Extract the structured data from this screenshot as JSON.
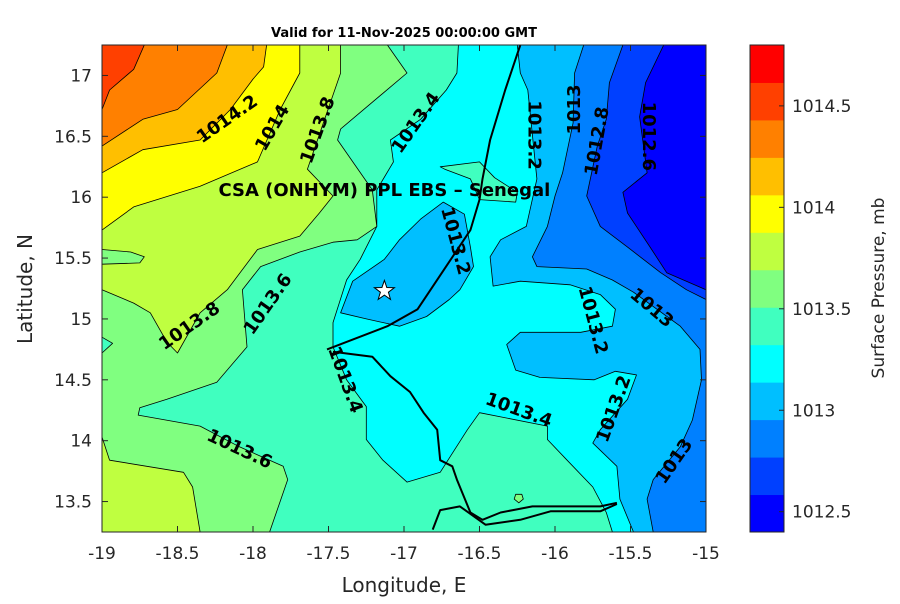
{
  "chart_data": {
    "type": "contour-map",
    "title": "Valid for 11-Nov-2025 00:00:00 GMT",
    "xlabel": "Longitude, E",
    "ylabel": "Latitude, N",
    "xlim": [
      -19,
      -15
    ],
    "ylim": [
      13.25,
      17.25
    ],
    "xticks": [
      -19,
      -18.5,
      -18,
      -17.5,
      -17,
      -16.5,
      -16,
      -15.5,
      -15
    ],
    "xtick_labels": [
      "-19",
      "-18.5",
      "-18",
      "-17.5",
      "-17",
      "-16.5",
      "-16",
      "-15.5",
      "-15"
    ],
    "yticks": [
      13.5,
      14,
      14.5,
      15,
      15.5,
      16,
      16.5,
      17
    ],
    "ytick_labels": [
      "13.5",
      "14",
      "14.5",
      "15",
      "15.5",
      "16",
      "16.5",
      "17"
    ],
    "colorbar": {
      "label": "Surface Pressure, mb",
      "range": [
        1012.4,
        1014.8
      ],
      "ticks": [
        1012.5,
        1013,
        1013.5,
        1014,
        1014.5
      ],
      "tick_labels": [
        "1012.5",
        "1013",
        "1013.5",
        "1014",
        "1014.5"
      ],
      "colors": [
        "#0000FF",
        "#0040FF",
        "#0080FF",
        "#00BFFF",
        "#00FFFF",
        "#40FFBF",
        "#80FF80",
        "#BFFF40",
        "#FFFF00",
        "#FFBF00",
        "#FF8000",
        "#FF4000",
        "#FF0000"
      ]
    },
    "base_color": "#0000FF",
    "filled_regions": [
      {
        "level": 1012.6,
        "color": "#0040FF",
        "points": [
          [
            -19,
            17.25
          ],
          [
            -15.28,
            17.25
          ],
          [
            -15.4,
            16.94
          ],
          [
            -15.44,
            16.66
          ],
          [
            -15.39,
            16.2
          ],
          [
            -15.55,
            16.04
          ],
          [
            -15.52,
            15.87
          ],
          [
            -15.37,
            15.59
          ],
          [
            -15.26,
            15.38
          ],
          [
            -15,
            15.24
          ],
          [
            -15,
            13.25
          ],
          [
            -19,
            13.25
          ]
        ]
      },
      {
        "level": 1012.8,
        "color": "#0080FF",
        "points": [
          [
            -19,
            17.25
          ],
          [
            -15.55,
            17.25
          ],
          [
            -15.64,
            16.94
          ],
          [
            -15.66,
            16.64
          ],
          [
            -15.72,
            16.42
          ],
          [
            -15.79,
            16.01
          ],
          [
            -15.7,
            15.76
          ],
          [
            -15.52,
            15.59
          ],
          [
            -15.3,
            15.38
          ],
          [
            -15.13,
            15.24
          ],
          [
            -15,
            15.16
          ],
          [
            -15,
            13.25
          ],
          [
            -19,
            13.25
          ]
        ]
      },
      {
        "level": 1013.0,
        "color": "#00BFFF",
        "points": [
          [
            -19,
            17.25
          ],
          [
            -15.81,
            17.25
          ],
          [
            -15.87,
            17.02
          ],
          [
            -15.88,
            16.61
          ],
          [
            -15.95,
            16.2
          ],
          [
            -16.0,
            16.01
          ],
          [
            -16.05,
            15.76
          ],
          [
            -16.15,
            15.51
          ],
          [
            -16.12,
            15.43
          ],
          [
            -15.79,
            15.41
          ],
          [
            -15.62,
            15.32
          ],
          [
            -15.48,
            15.22
          ],
          [
            -15.17,
            14.94
          ],
          [
            -15.04,
            14.75
          ],
          [
            -15.03,
            14.5
          ],
          [
            -15.09,
            14.17
          ],
          [
            -15.17,
            13.95
          ],
          [
            -15.35,
            13.68
          ],
          [
            -15.39,
            13.52
          ],
          [
            -15.35,
            13.25
          ],
          [
            -19,
            13.25
          ]
        ]
      },
      {
        "level": 1013.2,
        "color": "#00FFFF",
        "points": [
          [
            -19,
            17.25
          ],
          [
            -16.25,
            17.25
          ],
          [
            -16.23,
            17.02
          ],
          [
            -16.18,
            16.88
          ],
          [
            -16.12,
            16.15
          ],
          [
            -16.19,
            15.76
          ],
          [
            -16.36,
            15.65
          ],
          [
            -16.43,
            15.51
          ],
          [
            -16.41,
            15.27
          ],
          [
            -16.23,
            15.31
          ],
          [
            -15.9,
            15.28
          ],
          [
            -15.7,
            15.2
          ],
          [
            -15.6,
            15.08
          ],
          [
            -15.62,
            14.94
          ],
          [
            -15.83,
            14.89
          ],
          [
            -16.23,
            14.89
          ],
          [
            -16.32,
            14.79
          ],
          [
            -16.26,
            14.58
          ],
          [
            -16.1,
            14.52
          ],
          [
            -15.74,
            14.5
          ],
          [
            -15.6,
            14.57
          ],
          [
            -15.46,
            14.54
          ],
          [
            -15.52,
            14.34
          ],
          [
            -15.7,
            14.09
          ],
          [
            -15.75,
            13.98
          ],
          [
            -15.59,
            13.79
          ],
          [
            -15.57,
            13.52
          ],
          [
            -15.48,
            13.25
          ],
          [
            -19,
            13.25
          ]
        ]
      },
      {
        "level": 1013.0,
        "color": "#00BFFF",
        "points": [
          [
            -16.74,
            15.96
          ],
          [
            -16.6,
            15.86
          ],
          [
            -16.56,
            15.59
          ],
          [
            -16.54,
            15.43
          ],
          [
            -16.63,
            15.24
          ],
          [
            -16.7,
            15.16
          ],
          [
            -16.85,
            15.02
          ],
          [
            -17.03,
            14.94
          ],
          [
            -17.25,
            15.0
          ],
          [
            -17.42,
            15.05
          ],
          [
            -17.34,
            15.31
          ],
          [
            -17.13,
            15.49
          ],
          [
            -17.03,
            15.65
          ],
          [
            -16.89,
            15.82
          ]
        ]
      },
      {
        "level": 1013.4,
        "color": "#40FFBF",
        "points": [
          [
            -19,
            17.25
          ],
          [
            -16.64,
            17.25
          ],
          [
            -16.65,
            17.02
          ],
          [
            -16.72,
            16.88
          ],
          [
            -16.89,
            16.64
          ],
          [
            -17.09,
            16.47
          ],
          [
            -17.07,
            16.29
          ],
          [
            -17.18,
            16.06
          ],
          [
            -17.18,
            15.76
          ],
          [
            -17.29,
            15.49
          ],
          [
            -17.38,
            15.32
          ],
          [
            -17.47,
            14.97
          ],
          [
            -17.47,
            14.77
          ],
          [
            -17.38,
            14.5
          ],
          [
            -17.25,
            14.28
          ],
          [
            -17.25,
            14.01
          ],
          [
            -17.14,
            13.84
          ],
          [
            -16.98,
            13.66
          ],
          [
            -16.76,
            13.74
          ],
          [
            -16.58,
            14.09
          ],
          [
            -16.5,
            14.23
          ],
          [
            -16.05,
            14.12
          ],
          [
            -16.05,
            14.01
          ],
          [
            -15.92,
            13.84
          ],
          [
            -15.75,
            13.62
          ],
          [
            -15.66,
            13.41
          ],
          [
            -15.62,
            13.25
          ],
          [
            -19,
            13.25
          ]
        ]
      },
      {
        "level": 1013.4,
        "color": "#40FFBF",
        "points": [
          [
            -16.76,
            16.25
          ],
          [
            -16.5,
            16.29
          ],
          [
            -16.4,
            16.16
          ],
          [
            -16.25,
            16.04
          ],
          [
            -16.26,
            15.96
          ],
          [
            -16.5,
            15.98
          ],
          [
            -16.56,
            16.15
          ],
          [
            -16.73,
            16.23
          ]
        ]
      },
      {
        "level": 1013.6,
        "color": "#80FF80",
        "points": [
          [
            -19,
            17.25
          ],
          [
            -17.11,
            17.25
          ],
          [
            -16.98,
            17.02
          ],
          [
            -17.42,
            16.56
          ],
          [
            -17.44,
            16.47
          ],
          [
            -17.21,
            16.06
          ],
          [
            -17.18,
            15.76
          ],
          [
            -17.31,
            15.65
          ],
          [
            -17.47,
            15.63
          ],
          [
            -17.69,
            15.55
          ],
          [
            -17.95,
            15.43
          ],
          [
            -18.07,
            15.24
          ],
          [
            -18.04,
            14.77
          ],
          [
            -18.24,
            14.48
          ],
          [
            -18.57,
            14.34
          ],
          [
            -18.75,
            14.27
          ],
          [
            -18.76,
            14.21
          ],
          [
            -18.35,
            14.12
          ],
          [
            -18.09,
            13.95
          ],
          [
            -17.8,
            13.79
          ],
          [
            -17.77,
            13.68
          ],
          [
            -17.89,
            13.25
          ],
          [
            -19,
            13.25
          ]
        ]
      },
      {
        "level": 1013.4,
        "color": "#40FFBF",
        "points": [
          [
            -19,
            14.85
          ],
          [
            -18.93,
            14.8
          ],
          [
            -19,
            14.72
          ]
        ]
      },
      {
        "level": 1013.6,
        "color": "#80FF80",
        "points": [
          [
            -16.26,
            13.56
          ],
          [
            -16.22,
            13.56
          ],
          [
            -16.21,
            13.52
          ],
          [
            -16.24,
            13.49
          ],
          [
            -16.27,
            13.52
          ]
        ]
      },
      {
        "level": 1013.8,
        "color": "#BFFF40",
        "points": [
          [
            -19,
            17.25
          ],
          [
            -17.42,
            17.25
          ],
          [
            -17.42,
            17.02
          ],
          [
            -17.64,
            16.23
          ],
          [
            -17.47,
            16.01
          ],
          [
            -17.56,
            15.87
          ],
          [
            -17.69,
            15.68
          ],
          [
            -17.97,
            15.57
          ],
          [
            -18.17,
            15.24
          ],
          [
            -18.35,
            15.05
          ],
          [
            -18.5,
            14.72
          ],
          [
            -18.57,
            14.81
          ],
          [
            -18.68,
            15.05
          ],
          [
            -18.79,
            15.13
          ],
          [
            -19,
            15.24
          ]
        ]
      },
      {
        "level": 1013.6,
        "color": "#80FF80",
        "points": [
          [
            -19,
            15.57
          ],
          [
            -18.81,
            15.55
          ],
          [
            -18.72,
            15.51
          ],
          [
            -18.75,
            15.46
          ],
          [
            -19,
            15.45
          ]
        ]
      },
      {
        "level": 1013.8,
        "color": "#BFFF40",
        "points": [
          [
            -19,
            14.03
          ],
          [
            -18.95,
            13.84
          ],
          [
            -18.46,
            13.74
          ],
          [
            -18.4,
            13.62
          ],
          [
            -18.35,
            13.25
          ],
          [
            -19,
            13.25
          ]
        ]
      },
      {
        "level": 1014.0,
        "color": "#FFFF00",
        "points": [
          [
            -19,
            17.25
          ],
          [
            -17.69,
            17.25
          ],
          [
            -17.69,
            17.02
          ],
          [
            -17.82,
            16.72
          ],
          [
            -17.97,
            16.29
          ],
          [
            -18.35,
            16.09
          ],
          [
            -18.79,
            15.92
          ],
          [
            -19,
            15.73
          ]
        ]
      },
      {
        "level": 1014.2,
        "color": "#FFBF00",
        "points": [
          [
            -19,
            17.25
          ],
          [
            -17.91,
            17.25
          ],
          [
            -17.93,
            17.07
          ],
          [
            -18.0,
            16.97
          ],
          [
            -18.15,
            16.72
          ],
          [
            -18.35,
            16.47
          ],
          [
            -18.73,
            16.39
          ],
          [
            -19,
            16.2
          ]
        ]
      },
      {
        "level": 1014.4,
        "color": "#FF8000",
        "points": [
          [
            -19,
            17.25
          ],
          [
            -18.17,
            17.25
          ],
          [
            -18.24,
            17.02
          ],
          [
            -18.5,
            16.72
          ],
          [
            -18.73,
            16.64
          ],
          [
            -19,
            16.42
          ]
        ]
      },
      {
        "level": 1014.6,
        "color": "#FF4000",
        "points": [
          [
            -19,
            17.25
          ],
          [
            -18.72,
            17.25
          ],
          [
            -18.79,
            17.05
          ],
          [
            -18.95,
            16.88
          ],
          [
            -19,
            16.72
          ]
        ]
      }
    ],
    "contour_labels": [
      {
        "text": "1014.2",
        "lon": -18.17,
        "lat": 16.64
      },
      {
        "text": "1014",
        "lon": -17.87,
        "lat": 16.57
      },
      {
        "text": "1013.8",
        "lon": -17.57,
        "lat": 16.55
      },
      {
        "text": "1013.4",
        "lon": -16.92,
        "lat": 16.61
      },
      {
        "text": "1013.2",
        "lon": -16.14,
        "lat": 16.51
      },
      {
        "text": "1013",
        "lon": -15.87,
        "lat": 16.72
      },
      {
        "text": "1012.8",
        "lon": -15.72,
        "lat": 16.46
      },
      {
        "text": "1012.6",
        "lon": -15.38,
        "lat": 16.5
      },
      {
        "text": "1013.2",
        "lon": -16.66,
        "lat": 15.64
      },
      {
        "text": "1013.8",
        "lon": -18.42,
        "lat": 14.94
      },
      {
        "text": "1013.6",
        "lon": -17.9,
        "lat": 15.12
      },
      {
        "text": "1013.4",
        "lon": -17.39,
        "lat": 14.5
      },
      {
        "text": "1013.6",
        "lon": -18.09,
        "lat": 13.93
      },
      {
        "text": "1013.4",
        "lon": -16.24,
        "lat": 14.25
      },
      {
        "text": "1013.2",
        "lon": -15.75,
        "lat": 14.99
      },
      {
        "text": "1013",
        "lon": -15.36,
        "lat": 15.09
      },
      {
        "text": "1013.2",
        "lon": -15.61,
        "lat": 14.26
      },
      {
        "text": "1013",
        "lon": -15.21,
        "lat": 13.83
      }
    ],
    "coastlines": [
      [
        [
          -16.23,
          17.25
        ],
        [
          -16.33,
          16.88
        ],
        [
          -16.43,
          16.47
        ],
        [
          -16.48,
          16.15
        ],
        [
          -16.5,
          15.98
        ],
        [
          -16.56,
          15.73
        ],
        [
          -16.7,
          15.47
        ],
        [
          -16.91,
          15.08
        ],
        [
          -17.11,
          14.94
        ],
        [
          -17.51,
          14.75
        ]
      ],
      [
        [
          -17.47,
          14.73
        ],
        [
          -17.21,
          14.69
        ],
        [
          -17.09,
          14.53
        ],
        [
          -16.96,
          14.4
        ],
        [
          -16.87,
          14.23
        ],
        [
          -16.78,
          14.09
        ],
        [
          -16.76,
          13.84
        ],
        [
          -16.68,
          13.79
        ],
        [
          -16.65,
          13.68
        ],
        [
          -16.56,
          13.41
        ],
        [
          -16.48,
          13.35
        ],
        [
          -16.36,
          13.41
        ],
        [
          -16.15,
          13.46
        ],
        [
          -15.7,
          13.46
        ],
        [
          -15.59,
          13.49
        ]
      ],
      [
        [
          -16.81,
          13.27
        ],
        [
          -16.76,
          13.43
        ],
        [
          -16.63,
          13.46
        ],
        [
          -16.46,
          13.31
        ],
        [
          -16.23,
          13.35
        ],
        [
          -16.03,
          13.42
        ],
        [
          -15.7,
          13.42
        ],
        [
          -15.59,
          13.48
        ]
      ]
    ],
    "site": {
      "label": "CSA (ONHYM) PPL EBS  – Senegal",
      "lon": -17.13,
      "lat": 15.23,
      "marker": "star-icon"
    }
  }
}
